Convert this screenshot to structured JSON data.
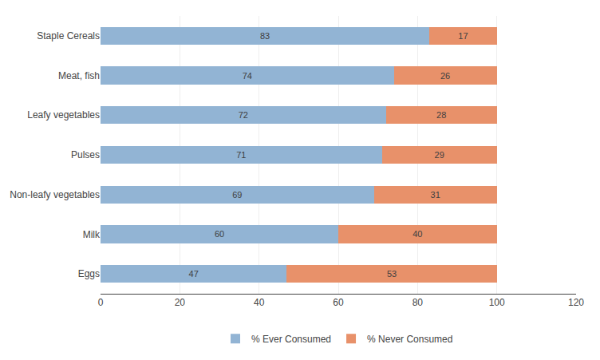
{
  "chart_data": {
    "type": "bar",
    "orientation": "horizontal",
    "stacked": true,
    "categories": [
      "Staple Cereals",
      "Meat, fish",
      "Leafy vegetables",
      "Pulses",
      "Non-leafy vegetables",
      "Milk",
      "Eggs"
    ],
    "series": [
      {
        "name": "% Ever Consumed",
        "color": "#92b4d4",
        "values": [
          83,
          74,
          72,
          71,
          69,
          60,
          47
        ]
      },
      {
        "name": "% Never Consumed",
        "color": "#e8916a",
        "values": [
          17,
          26,
          28,
          29,
          31,
          40,
          53
        ]
      }
    ],
    "xlim": [
      0,
      120
    ],
    "xticks": [
      0,
      20,
      40,
      60,
      80,
      100,
      120
    ],
    "grid": true,
    "legend": "bottom",
    "data_labels": true
  }
}
